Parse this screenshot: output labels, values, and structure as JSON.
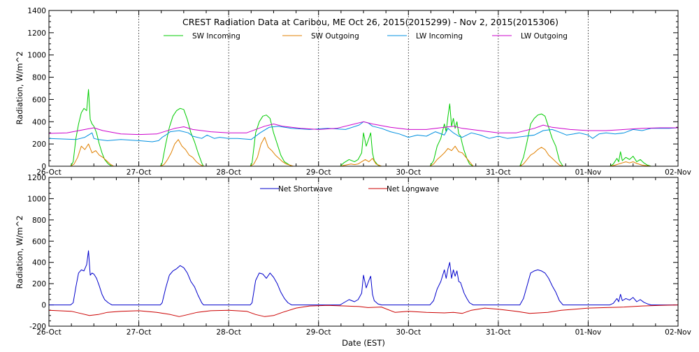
{
  "chart_data": [
    {
      "type": "line",
      "title": "CREST Radiation Data at Caribou, ME   Oct 26, 2015(2015299) - Nov  2, 2015(2015306)",
      "ylabel": "Radiation, W/m^2",
      "xlabel": "",
      "ylim": [
        0,
        1400
      ],
      "yticks": [
        0,
        200,
        400,
        600,
        800,
        1000,
        1200,
        1400
      ],
      "xlim": [
        0,
        7
      ],
      "x_tick_labels": [
        "26-Oct",
        "27-Oct",
        "28-Oct",
        "29-Oct",
        "30-Oct",
        "31-Oct",
        "01-Nov",
        "02-Nov"
      ],
      "grid": true,
      "legend_placement": "top",
      "x_units": "days since 26-Oct 00:00 EST",
      "series": [
        {
          "name": "SW Incoming",
          "color": "#00cc00",
          "x": [
            0,
            0.24,
            0.27,
            0.3,
            0.33,
            0.36,
            0.39,
            0.42,
            0.44,
            0.46,
            0.48,
            0.5,
            0.53,
            0.56,
            0.59,
            0.62,
            0.66,
            0.7,
            0.72,
            1.24,
            1.26,
            1.3,
            1.34,
            1.38,
            1.42,
            1.46,
            1.5,
            1.54,
            1.58,
            1.62,
            1.66,
            1.7,
            1.72,
            2.24,
            2.26,
            2.3,
            2.34,
            2.38,
            2.42,
            2.46,
            2.5,
            2.54,
            2.58,
            2.62,
            2.66,
            2.7,
            2.72,
            3.24,
            3.28,
            3.34,
            3.4,
            3.44,
            3.48,
            3.5,
            3.53,
            3.56,
            3.58,
            3.6,
            3.62,
            3.64,
            3.66,
            3.7,
            4.24,
            4.28,
            4.32,
            4.36,
            4.4,
            4.42,
            4.44,
            4.46,
            4.48,
            4.5,
            4.52,
            4.54,
            4.56,
            4.58,
            4.6,
            4.62,
            4.65,
            4.68,
            4.72,
            5.24,
            5.28,
            5.32,
            5.36,
            5.4,
            5.44,
            5.48,
            5.52,
            5.56,
            5.6,
            5.64,
            5.68,
            5.72,
            6.24,
            6.28,
            6.32,
            6.34,
            6.36,
            6.38,
            6.42,
            6.46,
            6.5,
            6.54,
            6.58,
            6.62,
            6.66,
            6.7,
            7
          ],
          "y": [
            0,
            0,
            40,
            250,
            380,
            480,
            520,
            500,
            690,
            420,
            380,
            360,
            300,
            200,
            120,
            60,
            20,
            0,
            0,
            0,
            30,
            200,
            350,
            450,
            500,
            520,
            510,
            420,
            300,
            220,
            120,
            30,
            0,
            0,
            30,
            300,
            400,
            450,
            460,
            430,
            300,
            200,
            100,
            40,
            20,
            0,
            0,
            0,
            30,
            60,
            40,
            60,
            120,
            300,
            180,
            250,
            300,
            120,
            50,
            30,
            10,
            0,
            0,
            50,
            180,
            250,
            380,
            310,
            450,
            560,
            360,
            430,
            340,
            400,
            290,
            270,
            200,
            140,
            70,
            20,
            0,
            0,
            80,
            220,
            380,
            430,
            460,
            470,
            450,
            350,
            250,
            180,
            50,
            0,
            0,
            20,
            70,
            40,
            130,
            50,
            80,
            60,
            90,
            40,
            60,
            30,
            10,
            0,
            0
          ]
        },
        {
          "name": "SW Outgoing",
          "color": "#e08000",
          "x": [
            0,
            0.24,
            0.28,
            0.32,
            0.36,
            0.4,
            0.44,
            0.48,
            0.52,
            0.56,
            0.6,
            0.64,
            0.68,
            0.72,
            1.24,
            1.28,
            1.32,
            1.36,
            1.4,
            1.44,
            1.48,
            1.52,
            1.56,
            1.6,
            1.64,
            1.68,
            1.72,
            2.24,
            2.28,
            2.32,
            2.36,
            2.4,
            2.44,
            2.48,
            2.52,
            2.56,
            2.6,
            2.64,
            2.68,
            2.72,
            3.24,
            3.3,
            3.36,
            3.4,
            3.44,
            3.48,
            3.52,
            3.56,
            3.6,
            3.64,
            3.7,
            4.24,
            4.28,
            4.32,
            4.36,
            4.4,
            4.44,
            4.48,
            4.52,
            4.56,
            4.6,
            4.64,
            4.68,
            4.72,
            5.24,
            5.28,
            5.32,
            5.36,
            5.4,
            5.44,
            5.48,
            5.52,
            5.56,
            5.6,
            5.64,
            5.68,
            5.72,
            6.24,
            6.3,
            6.34,
            6.38,
            6.42,
            6.46,
            6.5,
            6.54,
            6.6,
            6.7,
            7
          ],
          "y": [
            0,
            0,
            20,
            80,
            180,
            150,
            200,
            120,
            140,
            100,
            80,
            50,
            20,
            0,
            0,
            15,
            60,
            120,
            200,
            240,
            180,
            150,
            100,
            80,
            40,
            15,
            0,
            0,
            20,
            80,
            200,
            260,
            170,
            140,
            100,
            70,
            40,
            20,
            10,
            0,
            0,
            10,
            20,
            15,
            20,
            40,
            60,
            40,
            70,
            20,
            0,
            0,
            20,
            60,
            90,
            120,
            160,
            140,
            180,
            130,
            120,
            80,
            40,
            0,
            0,
            20,
            60,
            100,
            120,
            150,
            170,
            150,
            100,
            70,
            40,
            10,
            0,
            0,
            10,
            20,
            30,
            40,
            30,
            40,
            25,
            10,
            0,
            0
          ]
        },
        {
          "name": "LW Incoming",
          "color": "#0090e0",
          "x": [
            0,
            0.3,
            0.4,
            0.48,
            0.5,
            0.55,
            0.65,
            0.8,
            1.0,
            1.15,
            1.22,
            1.26,
            1.3,
            1.35,
            1.45,
            1.55,
            1.6,
            1.7,
            1.76,
            1.84,
            1.9,
            2.0,
            2.1,
            2.25,
            2.35,
            2.45,
            2.55,
            2.7,
            2.9,
            3.1,
            3.3,
            3.45,
            3.5,
            3.55,
            3.6,
            3.7,
            3.8,
            3.9,
            4.0,
            4.1,
            4.2,
            4.3,
            4.4,
            4.44,
            4.5,
            4.56,
            4.6,
            4.7,
            4.8,
            4.9,
            5.0,
            5.1,
            5.2,
            5.3,
            5.4,
            5.5,
            5.6,
            5.7,
            5.76,
            5.84,
            5.9,
            6.0,
            6.05,
            6.12,
            6.2,
            6.3,
            6.4,
            6.5,
            6.6,
            6.7,
            6.8,
            6.9,
            7
          ],
          "y": [
            250,
            240,
            260,
            300,
            250,
            240,
            230,
            240,
            230,
            220,
            230,
            260,
            280,
            310,
            320,
            300,
            270,
            250,
            280,
            250,
            260,
            250,
            250,
            240,
            300,
            350,
            360,
            340,
            330,
            340,
            330,
            370,
            400,
            390,
            360,
            340,
            310,
            290,
            260,
            280,
            270,
            310,
            280,
            340,
            300,
            270,
            260,
            300,
            280,
            250,
            270,
            250,
            260,
            270,
            280,
            320,
            330,
            300,
            280,
            290,
            300,
            280,
            250,
            290,
            300,
            290,
            300,
            330,
            320,
            340,
            340,
            340,
            345
          ]
        },
        {
          "name": "LW Outgoing",
          "color": "#cc00cc",
          "x": [
            0,
            0.2,
            0.4,
            0.5,
            0.6,
            0.8,
            1.0,
            1.2,
            1.4,
            1.5,
            1.6,
            1.8,
            2.0,
            2.2,
            2.4,
            2.5,
            2.6,
            2.8,
            3.0,
            3.2,
            3.4,
            3.5,
            3.6,
            3.8,
            4.0,
            4.2,
            4.4,
            4.5,
            4.6,
            4.8,
            5.0,
            5.2,
            5.4,
            5.5,
            5.6,
            5.8,
            6.0,
            6.2,
            6.4,
            6.6,
            6.8,
            7
          ],
          "y": [
            295,
            300,
            330,
            345,
            320,
            290,
            285,
            290,
            340,
            355,
            330,
            310,
            300,
            300,
            360,
            380,
            360,
            340,
            330,
            340,
            380,
            400,
            380,
            350,
            330,
            330,
            350,
            360,
            340,
            320,
            300,
            300,
            340,
            370,
            350,
            330,
            320,
            320,
            330,
            340,
            345,
            345
          ]
        }
      ]
    },
    {
      "type": "line",
      "title": "",
      "ylabel": "Radiation, W/m^2",
      "xlabel": "Date (EST)",
      "ylim": [
        -200,
        1200
      ],
      "yticks": [
        -200,
        0,
        200,
        400,
        600,
        800,
        1000,
        1200
      ],
      "xlim": [
        0,
        7
      ],
      "x_tick_labels": [
        "26-Oct",
        "27-Oct",
        "28-Oct",
        "29-Oct",
        "30-Oct",
        "31-Oct",
        "01-Nov",
        "02-Nov"
      ],
      "grid": true,
      "legend_placement": "top",
      "x_units": "days since 26-Oct 00:00 EST",
      "series": [
        {
          "name": "Net Shortwave",
          "color": "#0000cc",
          "x": [
            0,
            0.24,
            0.27,
            0.3,
            0.33,
            0.36,
            0.39,
            0.42,
            0.44,
            0.46,
            0.48,
            0.5,
            0.53,
            0.56,
            0.59,
            0.62,
            0.66,
            0.7,
            0.72,
            1.24,
            1.26,
            1.3,
            1.34,
            1.38,
            1.42,
            1.46,
            1.5,
            1.54,
            1.58,
            1.62,
            1.66,
            1.7,
            1.72,
            2.24,
            2.26,
            2.3,
            2.34,
            2.38,
            2.42,
            2.46,
            2.5,
            2.54,
            2.58,
            2.62,
            2.66,
            2.7,
            2.72,
            3.24,
            3.28,
            3.34,
            3.4,
            3.44,
            3.48,
            3.5,
            3.53,
            3.56,
            3.58,
            3.6,
            3.62,
            3.64,
            3.66,
            3.7,
            4.24,
            4.28,
            4.32,
            4.36,
            4.4,
            4.42,
            4.44,
            4.46,
            4.48,
            4.5,
            4.52,
            4.54,
            4.56,
            4.58,
            4.6,
            4.62,
            4.65,
            4.68,
            4.72,
            5.24,
            5.28,
            5.32,
            5.36,
            5.4,
            5.44,
            5.48,
            5.52,
            5.56,
            5.6,
            5.64,
            5.68,
            5.72,
            6.24,
            6.28,
            6.32,
            6.34,
            6.36,
            6.38,
            6.42,
            6.46,
            6.5,
            6.54,
            6.58,
            6.62,
            6.66,
            6.7,
            7
          ],
          "y": [
            0,
            0,
            20,
            170,
            300,
            330,
            320,
            380,
            510,
            280,
            300,
            290,
            250,
            180,
            100,
            50,
            20,
            0,
            0,
            0,
            20,
            160,
            280,
            320,
            340,
            370,
            350,
            300,
            220,
            170,
            90,
            20,
            0,
            0,
            20,
            230,
            300,
            290,
            250,
            300,
            260,
            200,
            120,
            60,
            20,
            0,
            0,
            0,
            20,
            50,
            30,
            50,
            110,
            280,
            160,
            230,
            270,
            100,
            40,
            25,
            10,
            0,
            0,
            40,
            150,
            220,
            330,
            250,
            340,
            400,
            250,
            330,
            270,
            320,
            220,
            210,
            160,
            110,
            60,
            20,
            0,
            0,
            60,
            180,
            300,
            320,
            330,
            320,
            300,
            250,
            180,
            120,
            40,
            0,
            0,
            15,
            60,
            30,
            100,
            40,
            60,
            45,
            70,
            30,
            50,
            25,
            10,
            0,
            0
          ]
        },
        {
          "name": "Net Longwave",
          "color": "#cc0000",
          "x": [
            0,
            0.25,
            0.35,
            0.45,
            0.55,
            0.65,
            0.8,
            1.0,
            1.2,
            1.35,
            1.45,
            1.55,
            1.65,
            1.8,
            2.0,
            2.2,
            2.3,
            2.4,
            2.5,
            2.6,
            2.75,
            2.9,
            3.1,
            3.3,
            3.45,
            3.55,
            3.7,
            3.85,
            4.0,
            4.2,
            4.4,
            4.5,
            4.6,
            4.7,
            4.85,
            5.0,
            5.2,
            5.35,
            5.45,
            5.55,
            5.7,
            5.85,
            6.0,
            6.2,
            6.4,
            6.6,
            6.8,
            7
          ],
          "y": [
            -50,
            -60,
            -80,
            -100,
            -90,
            -70,
            -60,
            -55,
            -70,
            -90,
            -110,
            -90,
            -70,
            -55,
            -50,
            -60,
            -90,
            -110,
            -100,
            -70,
            -30,
            -10,
            -5,
            -10,
            -15,
            -25,
            -20,
            -70,
            -60,
            -70,
            -75,
            -70,
            -80,
            -50,
            -30,
            -40,
            -60,
            -80,
            -75,
            -70,
            -50,
            -40,
            -30,
            -25,
            -20,
            -10,
            -5,
            0
          ]
        }
      ]
    }
  ]
}
